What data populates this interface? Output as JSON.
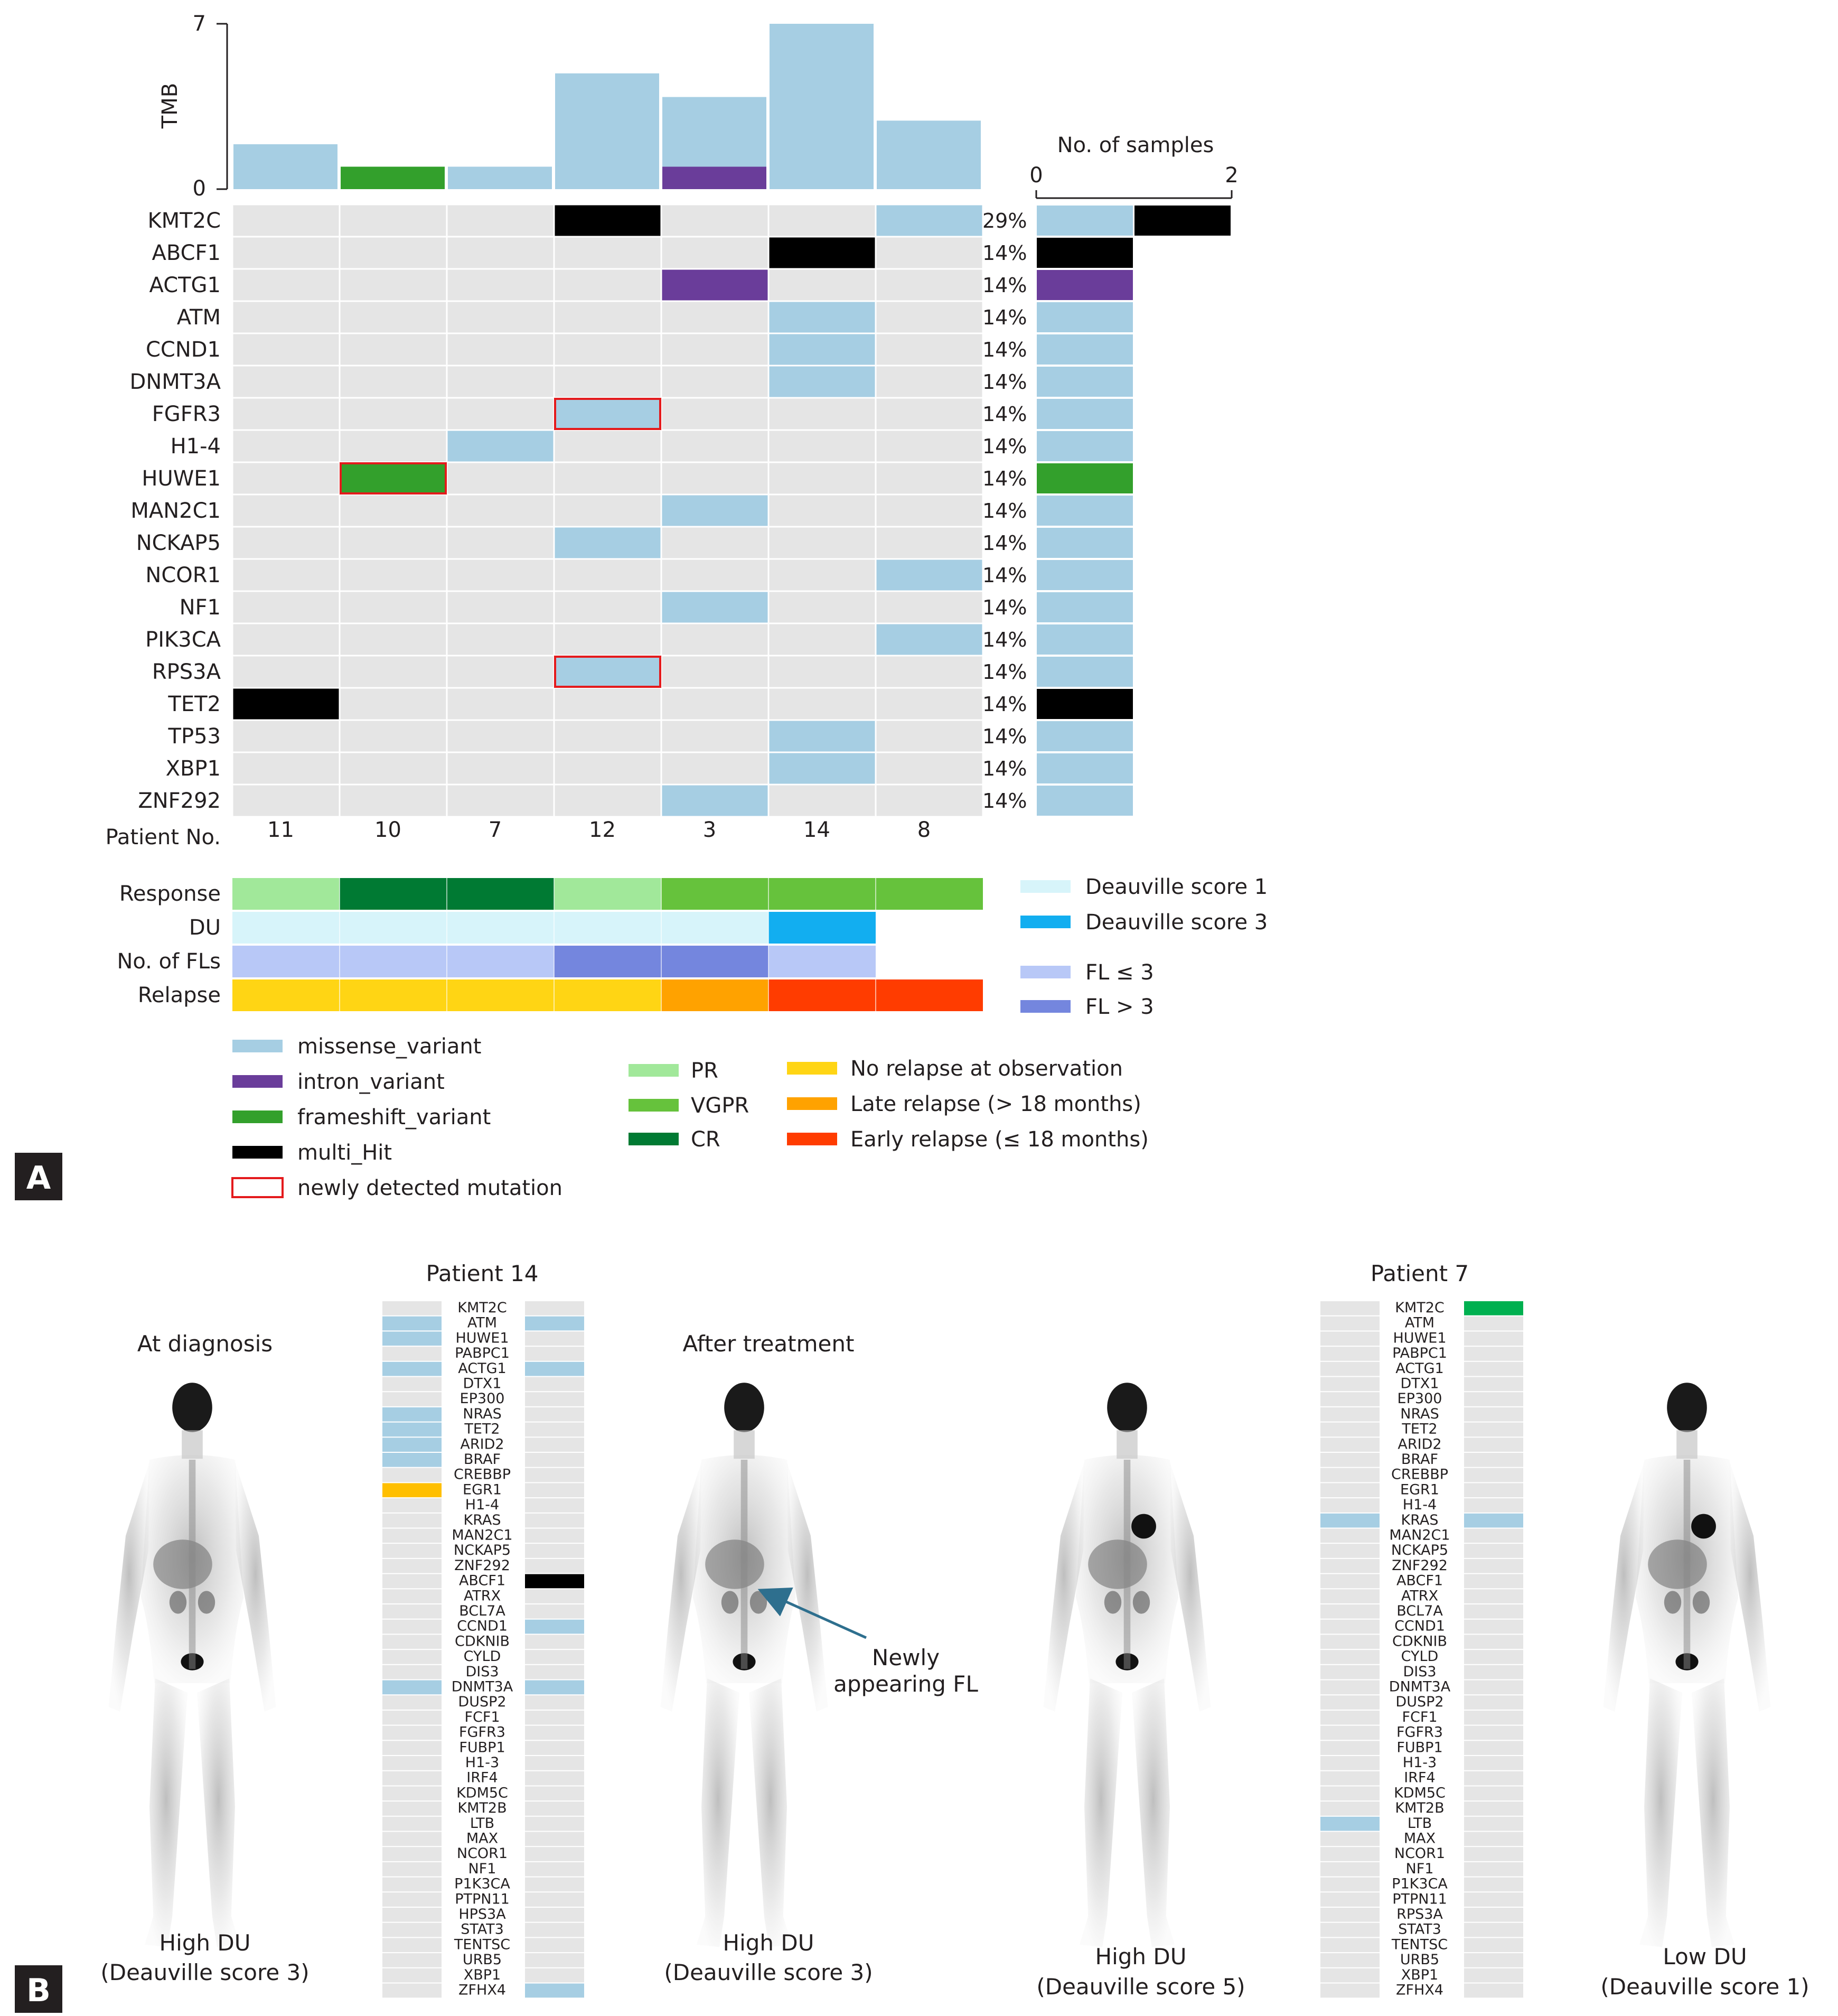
{
  "panel_labels": {
    "a": "A",
    "b": "B"
  },
  "colors": {
    "missense_variant": "#a6cee3",
    "intron_variant": "#6a3d9a",
    "frameshift_variant": "#33a02c",
    "multi_Hit": "#000000",
    "newly_detected_border": "#e41a1c",
    "empty_cell": "#e5e5e5",
    "PR": "#a1e89a",
    "VGPR": "#66c23c",
    "CR": "#007a33",
    "du_score1": "#d7f4fa",
    "du_score3": "#12aef0",
    "fl_le3": "#b8c8f7",
    "fl_gt3": "#7486de",
    "no_relapse": "#ffd514",
    "late_relapse": "#ffa200",
    "early_relapse": "#ff3c00",
    "orange_bar": "#ffbf00",
    "green_bar": "#00b050"
  },
  "chart_data": [
    {
      "type": "heatmap",
      "name": "oncoplot",
      "tmb_axis_label": "TMB",
      "tmb_ticks": [
        "0",
        "7"
      ],
      "tmb_range": [
        0,
        7
      ],
      "patients": [
        "11",
        "10",
        "7",
        "12",
        "3",
        "14",
        "8"
      ],
      "patient_label": "Patient No.",
      "tmb": [
        {
          "total": 1.9,
          "missense": 1.9,
          "frameshift": 0,
          "intron": 0
        },
        {
          "total": 0.95,
          "missense": 0,
          "frameshift": 0.95,
          "intron": 0
        },
        {
          "total": 0.95,
          "missense": 0.95,
          "frameshift": 0,
          "intron": 0
        },
        {
          "total": 4.9,
          "missense": 4.9,
          "frameshift": 0,
          "intron": 0
        },
        {
          "total": 3.9,
          "missense": 2.95,
          "frameshift": 0,
          "intron": 0.95
        },
        {
          "total": 7.0,
          "missense": 7.0,
          "frameshift": 0,
          "intron": 0
        },
        {
          "total": 2.9,
          "missense": 2.9,
          "frameshift": 0,
          "intron": 0
        }
      ],
      "genes": [
        {
          "name": "KMT2C",
          "pct": "29%",
          "cells": {
            "12": "multi_Hit",
            "8": "missense_variant"
          },
          "samples": [
            {
              "type": "missense_variant",
              "n": 1
            },
            {
              "type": "multi_Hit",
              "n": 1
            }
          ]
        },
        {
          "name": "ABCF1",
          "pct": "14%",
          "cells": {
            "14": "multi_Hit"
          },
          "samples": [
            {
              "type": "multi_Hit",
              "n": 1
            }
          ]
        },
        {
          "name": "ACTG1",
          "pct": "14%",
          "cells": {
            "3": "intron_variant"
          },
          "samples": [
            {
              "type": "intron_variant",
              "n": 1
            }
          ]
        },
        {
          "name": "ATM",
          "pct": "14%",
          "cells": {
            "14": "missense_variant"
          },
          "samples": [
            {
              "type": "missense_variant",
              "n": 1
            }
          ]
        },
        {
          "name": "CCND1",
          "pct": "14%",
          "cells": {
            "14": "missense_variant"
          },
          "samples": [
            {
              "type": "missense_variant",
              "n": 1
            }
          ]
        },
        {
          "name": "DNMT3A",
          "pct": "14%",
          "cells": {
            "14": "missense_variant"
          },
          "samples": [
            {
              "type": "missense_variant",
              "n": 1
            }
          ]
        },
        {
          "name": "FGFR3",
          "pct": "14%",
          "cells": {
            "12": "missense_variant"
          },
          "new": [
            "12"
          ],
          "samples": [
            {
              "type": "missense_variant",
              "n": 1
            }
          ]
        },
        {
          "name": "H1-4",
          "pct": "14%",
          "cells": {
            "7": "missense_variant"
          },
          "samples": [
            {
              "type": "missense_variant",
              "n": 1
            }
          ]
        },
        {
          "name": "HUWE1",
          "pct": "14%",
          "cells": {
            "10": "frameshift_variant"
          },
          "new": [
            "10"
          ],
          "samples": [
            {
              "type": "frameshift_variant",
              "n": 1
            }
          ]
        },
        {
          "name": "MAN2C1",
          "pct": "14%",
          "cells": {
            "3": "missense_variant"
          },
          "samples": [
            {
              "type": "missense_variant",
              "n": 1
            }
          ]
        },
        {
          "name": "NCKAP5",
          "pct": "14%",
          "cells": {
            "12": "missense_variant"
          },
          "samples": [
            {
              "type": "missense_variant",
              "n": 1
            }
          ]
        },
        {
          "name": "NCOR1",
          "pct": "14%",
          "cells": {
            "8": "missense_variant"
          },
          "samples": [
            {
              "type": "missense_variant",
              "n": 1
            }
          ]
        },
        {
          "name": "NF1",
          "pct": "14%",
          "cells": {
            "3": "missense_variant"
          },
          "samples": [
            {
              "type": "missense_variant",
              "n": 1
            }
          ]
        },
        {
          "name": "PIK3CA",
          "pct": "14%",
          "cells": {
            "8": "missense_variant"
          },
          "samples": [
            {
              "type": "missense_variant",
              "n": 1
            }
          ]
        },
        {
          "name": "RPS3A",
          "pct": "14%",
          "cells": {
            "12": "missense_variant"
          },
          "new": [
            "12"
          ],
          "samples": [
            {
              "type": "missense_variant",
              "n": 1
            }
          ]
        },
        {
          "name": "TET2",
          "pct": "14%",
          "cells": {
            "11": "multi_Hit"
          },
          "samples": [
            {
              "type": "multi_Hit",
              "n": 1
            }
          ]
        },
        {
          "name": "TP53",
          "pct": "14%",
          "cells": {
            "14": "missense_variant"
          },
          "samples": [
            {
              "type": "missense_variant",
              "n": 1
            }
          ]
        },
        {
          "name": "XBP1",
          "pct": "14%",
          "cells": {
            "14": "missense_variant"
          },
          "samples": [
            {
              "type": "missense_variant",
              "n": 1
            }
          ]
        },
        {
          "name": "ZNF292",
          "pct": "14%",
          "cells": {
            "3": "missense_variant"
          },
          "samples": [
            {
              "type": "missense_variant",
              "n": 1
            }
          ]
        }
      ],
      "samples_axis": {
        "title": "No. of samples",
        "ticks": [
          "0",
          "2"
        ],
        "range": [
          0,
          2
        ]
      },
      "annotations": [
        {
          "label": "Response",
          "values": [
            "PR",
            "CR",
            "CR",
            "PR",
            "VGPR",
            "VGPR",
            "VGPR"
          ]
        },
        {
          "label": "DU",
          "values": [
            "du_score1",
            "du_score1",
            "du_score1",
            "du_score1",
            "du_score1",
            "du_score3",
            null
          ]
        },
        {
          "label": "No. of FLs",
          "values": [
            "fl_le3",
            "fl_le3",
            "fl_le3",
            "fl_gt3",
            "fl_gt3",
            "fl_le3",
            null
          ]
        },
        {
          "label": "Relapse",
          "values": [
            "no_relapse",
            "no_relapse",
            "no_relapse",
            "no_relapse",
            "late_relapse",
            "early_relapse",
            "early_relapse"
          ]
        }
      ],
      "legend_right": [
        {
          "key": "du_score1",
          "label": "Deauville score 1"
        },
        {
          "key": "du_score3",
          "label": "Deauville score 3"
        },
        {
          "key": "fl_le3",
          "label": "FL ≤ 3"
        },
        {
          "key": "fl_gt3",
          "label": "FL > 3"
        }
      ],
      "legend_mutations": [
        {
          "key": "missense_variant",
          "label": "missense_variant"
        },
        {
          "key": "intron_variant",
          "label": "intron_variant"
        },
        {
          "key": "frameshift_variant",
          "label": "frameshift_variant"
        },
        {
          "key": "multi_Hit",
          "label": "multi_Hit"
        },
        {
          "key": "newly_detected_border",
          "label": "newly detected mutation",
          "outline": true
        }
      ],
      "legend_response": [
        {
          "key": "PR",
          "label": "PR"
        },
        {
          "key": "VGPR",
          "label": "VGPR"
        },
        {
          "key": "CR",
          "label": "CR"
        }
      ],
      "legend_relapse": [
        {
          "key": "no_relapse",
          "label": "No relapse at observation"
        },
        {
          "key": "late_relapse",
          "label": "Late relapse (> 18 months)"
        },
        {
          "key": "early_relapse",
          "label": "Early relapse (≤ 18 months)"
        }
      ]
    },
    {
      "type": "heatmap",
      "name": "patient-14-gene-strip",
      "title": "Patient 14",
      "genes": [
        "KMT2C",
        "ATM",
        "HUWE1",
        "PABPC1",
        "ACTG1",
        "DTX1",
        "EP300",
        "NRAS",
        "TET2",
        "ARID2",
        "BRAF",
        "CREBBP",
        "EGR1",
        "H1-4",
        "KRAS",
        "MAN2C1",
        "NCKAP5",
        "ZNF292",
        "ABCF1",
        "ATRX",
        "BCL7A",
        "CCND1",
        "CDKNIB",
        "CYLD",
        "DIS3",
        "DNMT3A",
        "DUSP2",
        "FCF1",
        "FGFR3",
        "FUBP1",
        "H1-3",
        "IRF4",
        "KDM5C",
        "KMT2B",
        "LTB",
        "MAX",
        "NCOR1",
        "NF1",
        "P1K3CA",
        "PTPN11",
        "HPS3A",
        "STAT3",
        "TENTSC",
        "URB5",
        "XBP1",
        "ZFHX4"
      ],
      "left_marks": {
        "ATM": "missense_variant",
        "HUWE1": "missense_variant",
        "ACTG1": "missense_variant",
        "NRAS": "missense_variant",
        "TET2": "missense_variant",
        "ARID2": "missense_variant",
        "BRAF": "missense_variant",
        "EGR1": "orange_bar",
        "DNMT3A": "missense_variant"
      },
      "right_marks": {
        "ATM": "missense_variant",
        "ACTG1": "missense_variant",
        "ABCF1": "multi_Hit",
        "CCND1": "missense_variant",
        "DNMT3A": "missense_variant",
        "ZFHX4": "missense_variant"
      }
    },
    {
      "type": "heatmap",
      "name": "patient-7-gene-strip",
      "title": "Patient 7",
      "genes": [
        "KMT2C",
        "ATM",
        "HUWE1",
        "PABPC1",
        "ACTG1",
        "DTX1",
        "EP300",
        "NRAS",
        "TET2",
        "ARID2",
        "BRAF",
        "CREBBP",
        "EGR1",
        "H1-4",
        "KRAS",
        "MAN2C1",
        "NCKAP5",
        "ZNF292",
        "ABCF1",
        "ATRX",
        "BCL7A",
        "CCND1",
        "CDKNIB",
        "CYLD",
        "DIS3",
        "DNMT3A",
        "DUSP2",
        "FCF1",
        "FGFR3",
        "FUBP1",
        "H1-3",
        "IRF4",
        "KDM5C",
        "KMT2B",
        "LTB",
        "MAX",
        "NCOR1",
        "NF1",
        "P1K3CA",
        "PTPN11",
        "RPS3A",
        "STAT3",
        "TENTSC",
        "URB5",
        "XBP1",
        "ZFHX4"
      ],
      "left_marks": {
        "KRAS": "missense_variant",
        "LTB": "missense_variant"
      },
      "right_marks": {
        "KMT2C": "green_bar",
        "KRAS": "missense_variant"
      }
    }
  ],
  "panel_b": {
    "p14_pre": {
      "caption_top": "At diagnosis",
      "caption_l1": "High DU",
      "caption_l2": "(Deauville score 3)"
    },
    "p14_post": {
      "caption_top": "After treatment",
      "caption_l1": "High DU",
      "caption_l2": "(Deauville score 3)",
      "arrow_text_l1": "Newly",
      "arrow_text_l2": "appearing FL"
    },
    "p7_pre": {
      "caption_l1": "High DU",
      "caption_l2": "(Deauville score 5)"
    },
    "p7_post": {
      "caption_l1": "Low DU",
      "caption_l2": "(Deauville score 1)"
    }
  }
}
